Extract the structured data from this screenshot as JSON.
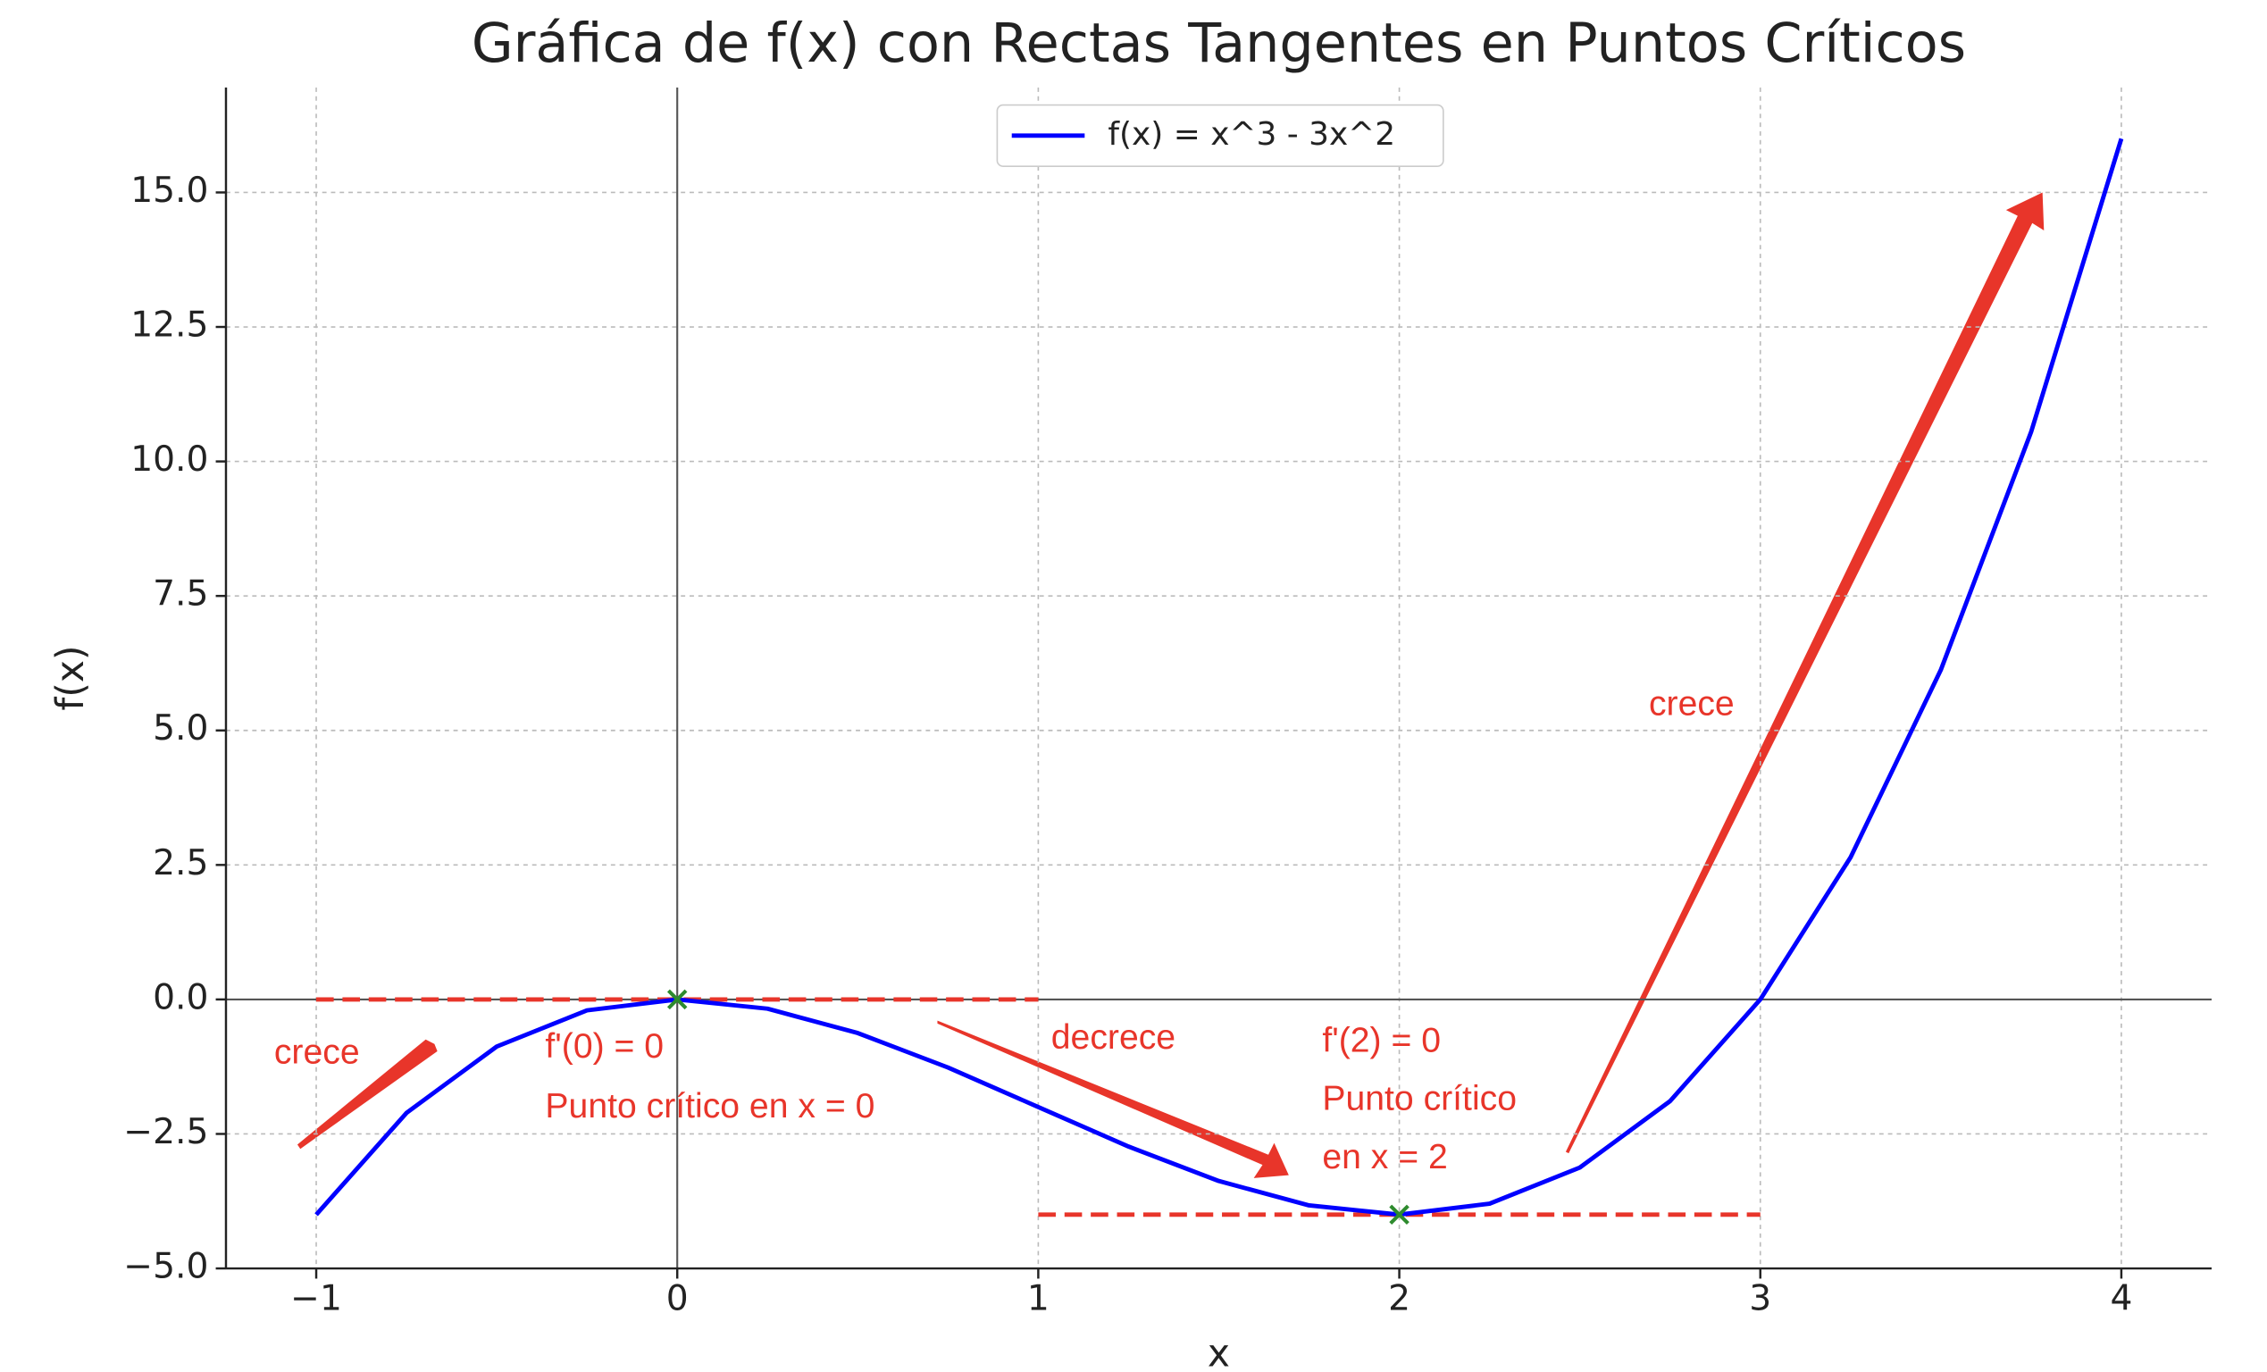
{
  "chart_data": {
    "type": "line",
    "title": "Gráfica de f(x) con Rectas Tangentes en Puntos Críticos",
    "x_label": "x",
    "y_label": "f(x)",
    "x": [
      -1,
      -0.75,
      -0.5,
      -0.25,
      0,
      0.25,
      0.5,
      0.75,
      1,
      1.25,
      1.5,
      1.75,
      2,
      2.25,
      2.5,
      2.75,
      3,
      3.25,
      3.5,
      3.75,
      4
    ],
    "series": [
      {
        "name": "f(x) = x^3 - 3x^2",
        "color": "#0000ff",
        "values": [
          -4,
          -2.109375,
          -0.875,
          -0.203125,
          0,
          -0.171875,
          -0.625,
          -1.265625,
          -2,
          -2.734375,
          -3.375,
          -3.828125,
          -4,
          -3.796875,
          -3.125,
          -1.890625,
          0,
          2.640625,
          6.125,
          10.546875,
          16
        ]
      }
    ],
    "tangent_lines": [
      {
        "x": [
          -1,
          1
        ],
        "values": [
          0,
          0
        ],
        "color": "#e8352a"
      },
      {
        "x": [
          1,
          3
        ],
        "values": [
          -4,
          -4
        ],
        "color": "#e8352a"
      }
    ],
    "critical_points": {
      "x": [
        0,
        2
      ],
      "values": [
        0,
        -4
      ],
      "color": "#2e8b2e"
    },
    "annotations": [
      "crece",
      "f'(0) = 0",
      "Punto crítico en x = 0",
      "decrece",
      "f'(2) = 0",
      "Punto crítico",
      "en x = 2",
      "crece"
    ],
    "xlim": [
      -1.25,
      4.25
    ],
    "ylim": [
      -5,
      16.95
    ],
    "xticks": [
      {
        "value": -1,
        "label": "−1"
      },
      0,
      1,
      2,
      3,
      4
    ],
    "yticks": [
      {
        "value": -5,
        "label": "−5.0"
      },
      {
        "value": -2.5,
        "label": "−2.5"
      },
      {
        "value": 0,
        "label": "0.0"
      },
      2.5,
      {
        "value": 5,
        "label": "5.0"
      },
      7.5,
      {
        "value": 10,
        "label": "10.0"
      },
      12.5,
      {
        "value": 15,
        "label": "15.0"
      }
    ],
    "grid": true,
    "legend": "upper center"
  }
}
